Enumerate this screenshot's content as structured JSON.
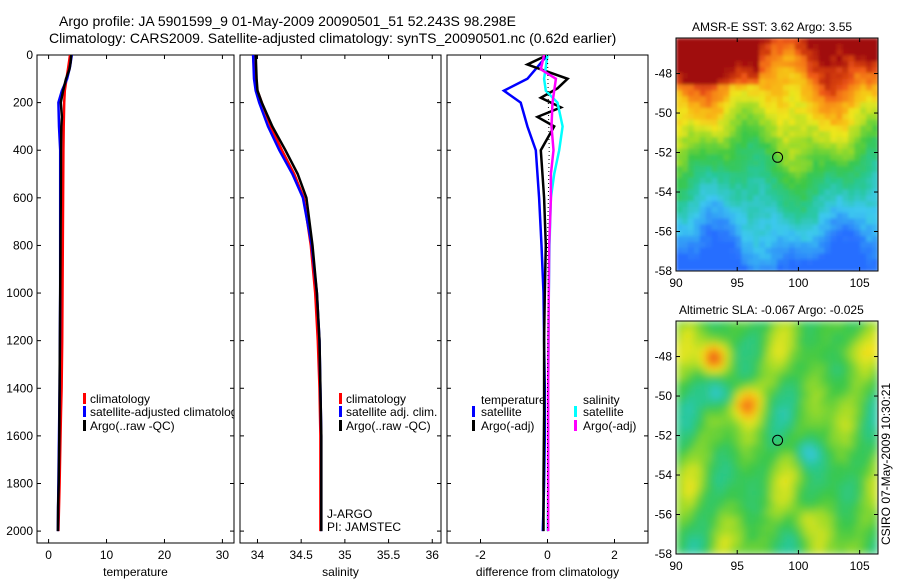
{
  "header": {
    "line1": "Argo profile: JA 5901599_9 01-May-2009 20090501_51 52.243S 98.298E",
    "line2": "Climatology: CARS2009. Satellite-adjusted climatology: synTS_20090501.nc (0.62d earlier)"
  },
  "colors": {
    "climatology": "#ff0000",
    "satellite": "#0000ff",
    "argo": "#000000",
    "sal_satellite": "#00ffff",
    "sal_argo": "#ff00ff"
  },
  "chart_data": [
    {
      "id": "temperature",
      "type": "line",
      "xlabel": "temperature",
      "ylabel": "",
      "xlim": [
        -2,
        32
      ],
      "ylim": [
        2050,
        0
      ],
      "xticks": [
        0,
        10,
        20,
        30
      ],
      "xtick_labels": [
        "0",
        "10",
        "20",
        "30"
      ],
      "yticks": [
        0,
        200,
        400,
        600,
        800,
        1000,
        1200,
        1400,
        1600,
        1800,
        2000
      ],
      "ytick_labels": [
        "0",
        "200",
        "400",
        "600",
        "800",
        "1000",
        "1200",
        "1400",
        "1600",
        "1800",
        "2000"
      ],
      "legend": [
        "climatology",
        "satellite-adjusted climatology",
        "Argo(..raw -QC)"
      ],
      "series": [
        {
          "name": "climatology",
          "color": "#ff0000",
          "x": [
            3.7,
            3.4,
            3.1,
            2.8,
            2.7,
            2.6,
            2.55,
            2.5,
            2.45,
            2.4,
            2.35,
            2.25,
            2.15,
            2.05,
            1.9,
            1.8,
            1.7
          ],
          "y": [
            0,
            50,
            100,
            150,
            200,
            300,
            400,
            600,
            800,
            1000,
            1200,
            1400,
            1500,
            1600,
            1800,
            1900,
            2000
          ]
        },
        {
          "name": "satellite-adjusted climatology",
          "color": "#0000ff",
          "x": [
            4.0,
            3.7,
            3.2,
            2.3,
            1.7,
            1.8,
            2.0,
            2.0,
            2.0,
            2.0,
            1.95,
            1.9,
            1.85,
            1.8,
            1.7,
            1.65,
            1.6
          ],
          "y": [
            0,
            50,
            100,
            150,
            200,
            300,
            400,
            600,
            800,
            1000,
            1200,
            1400,
            1500,
            1600,
            1800,
            1900,
            2000
          ]
        },
        {
          "name": "Argo(..raw -QC)",
          "color": "#000000",
          "x": [
            3.9,
            3.8,
            3.6,
            3.0,
            2.5,
            2.1,
            2.3,
            2.2,
            2.15,
            2.1,
            2.05,
            2.0,
            1.95,
            1.9,
            1.85,
            1.75,
            1.65,
            1.6
          ],
          "y": [
            0,
            30,
            60,
            100,
            150,
            200,
            260,
            300,
            400,
            600,
            800,
            1000,
            1200,
            1400,
            1600,
            1800,
            1900,
            2000
          ]
        }
      ]
    },
    {
      "id": "salinity",
      "type": "line",
      "xlabel": "salinity",
      "ylabel": "",
      "xlim": [
        33.8,
        36.1
      ],
      "ylim": [
        2050,
        0
      ],
      "xticks": [
        34,
        34.5,
        35,
        35.5,
        36
      ],
      "xtick_labels": [
        "34",
        "34.5",
        "35",
        "35.5",
        "36"
      ],
      "legend": [
        "climatology",
        "satellite adj. clim.",
        "Argo(..raw -QC)"
      ],
      "annotation": [
        "J-ARGO",
        "PI: JAMSTEC"
      ],
      "series": [
        {
          "name": "climatology",
          "color": "#ff0000",
          "x": [
            33.95,
            33.97,
            34.0,
            34.05,
            34.15,
            34.28,
            34.42,
            34.53,
            34.61,
            34.66,
            34.69,
            34.71,
            34.72,
            34.72,
            34.72,
            34.72
          ],
          "y": [
            0,
            100,
            150,
            200,
            300,
            400,
            500,
            600,
            800,
            1000,
            1200,
            1400,
            1600,
            1800,
            1900,
            2000
          ]
        },
        {
          "name": "satellite adj. clim.",
          "color": "#0000ff",
          "x": [
            33.95,
            33.96,
            33.98,
            34.02,
            34.12,
            34.25,
            34.4,
            34.52,
            34.62,
            34.68,
            34.71,
            34.72,
            34.73,
            34.73,
            34.73,
            34.73
          ],
          "y": [
            0,
            100,
            150,
            200,
            300,
            400,
            500,
            600,
            800,
            1000,
            1200,
            1400,
            1600,
            1800,
            1900,
            2000
          ]
        },
        {
          "name": "Argo(..raw -QC)",
          "color": "#000000",
          "x": [
            33.98,
            33.99,
            34.0,
            34.05,
            34.17,
            34.32,
            34.46,
            34.56,
            34.63,
            34.68,
            34.71,
            34.72,
            34.73,
            34.73,
            34.73
          ],
          "y": [
            0,
            100,
            150,
            200,
            300,
            400,
            500,
            600,
            800,
            1000,
            1200,
            1400,
            1600,
            1800,
            2000
          ]
        }
      ]
    },
    {
      "id": "difference",
      "type": "line",
      "xlabel": "difference from climatology",
      "ylabel": "",
      "xlim": [
        -3,
        3
      ],
      "ylim": [
        2050,
        0
      ],
      "xticks": [
        -2,
        0,
        2
      ],
      "xtick_labels": [
        "-2",
        "0",
        "2"
      ],
      "legend_groups": [
        {
          "title": "temperature",
          "entries": [
            "satellite",
            "Argo(-adj)"
          ]
        },
        {
          "title": "salinity",
          "entries": [
            "satellite",
            "Argo(-adj)"
          ]
        }
      ],
      "series": [
        {
          "name": "temperature satellite",
          "color": "#0000ff",
          "x": [
            0.0,
            -0.3,
            -0.6,
            -1.3,
            -0.8,
            -0.6,
            -0.35,
            -0.25,
            -0.18,
            -0.12,
            -0.1,
            -0.08,
            -0.08,
            -0.1,
            -0.12,
            -0.14
          ],
          "y": [
            0,
            50,
            100,
            150,
            200,
            300,
            400,
            600,
            800,
            1000,
            1200,
            1400,
            1600,
            1800,
            1900,
            2000
          ]
        },
        {
          "name": "temperature Argo(-adj)",
          "color": "#000000",
          "x": [
            0.0,
            -0.6,
            -0.2,
            0.6,
            0.3,
            -0.2,
            0.4,
            -0.3,
            0.2,
            -0.2,
            -0.1,
            -0.05,
            -0.08,
            -0.1,
            -0.1,
            -0.12,
            -0.12
          ],
          "y": [
            0,
            40,
            60,
            100,
            140,
            180,
            220,
            260,
            300,
            400,
            600,
            800,
            1000,
            1200,
            1500,
            1800,
            2000
          ]
        },
        {
          "name": "salinity satellite",
          "color": "#00ffff",
          "x": [
            0.0,
            -0.05,
            -0.1,
            -0.05,
            0.3,
            0.45,
            0.35,
            0.2,
            0.1,
            0.06,
            0.04,
            0.03,
            0.02,
            0.02,
            0.02,
            0.01
          ],
          "y": [
            0,
            50,
            100,
            150,
            200,
            300,
            400,
            500,
            600,
            800,
            1000,
            1200,
            1400,
            1600,
            1800,
            2000
          ]
        },
        {
          "name": "salinity Argo(-adj)",
          "color": "#ff00ff",
          "x": [
            -0.1,
            -0.2,
            0.25,
            0.2,
            0.15,
            0.12,
            0.18,
            0.1,
            0.1,
            0.05,
            0.04,
            0.03,
            0.02,
            0.02,
            0.02,
            0.02
          ],
          "y": [
            0,
            60,
            100,
            150,
            200,
            300,
            400,
            500,
            600,
            800,
            1000,
            1200,
            1400,
            1600,
            1800,
            2000
          ]
        },
        {
          "name": "salinity satellite dotted",
          "color": "#000000",
          "x": [
            0.0,
            0.05,
            0.0,
            0.02,
            0.0,
            0.0,
            0.0
          ],
          "y": [
            0,
            400,
            800,
            1000,
            1400,
            1800,
            2000
          ],
          "style": "dotted"
        }
      ]
    },
    {
      "id": "sst_map",
      "type": "heatmap",
      "title": "AMSR-E SST: 3.62 Argo: 3.55",
      "xlim": [
        90,
        106.5
      ],
      "ylim": [
        -58,
        -46.2
      ],
      "xticks": [
        90,
        95,
        100,
        105
      ],
      "xtick_labels": [
        "90",
        "95",
        "100",
        "105"
      ],
      "yticks": [
        -48,
        -50,
        -52,
        -54,
        -56,
        -58
      ],
      "ytick_labels": [
        "-48",
        "-50",
        "-52",
        "-54",
        "-56",
        "-58"
      ],
      "marker": {
        "x": 98.298,
        "y": -52.243
      }
    },
    {
      "id": "sla_map",
      "type": "heatmap",
      "title": "Altimetric SLA: -0.067 Argo: -0.025",
      "xlim": [
        90,
        106.5
      ],
      "ylim": [
        -58,
        -46.2
      ],
      "xticks": [
        90,
        95,
        100,
        105
      ],
      "xtick_labels": [
        "90",
        "95",
        "100",
        "105"
      ],
      "yticks": [
        -48,
        -50,
        -52,
        -54,
        -56,
        -58
      ],
      "ytick_labels": [
        "-48",
        "-50",
        "-52",
        "-54",
        "-56",
        "-58"
      ],
      "marker": {
        "x": 98.298,
        "y": -52.243
      }
    }
  ],
  "footer_vertical": "CSIRO 07-May-2009 10:30:21"
}
